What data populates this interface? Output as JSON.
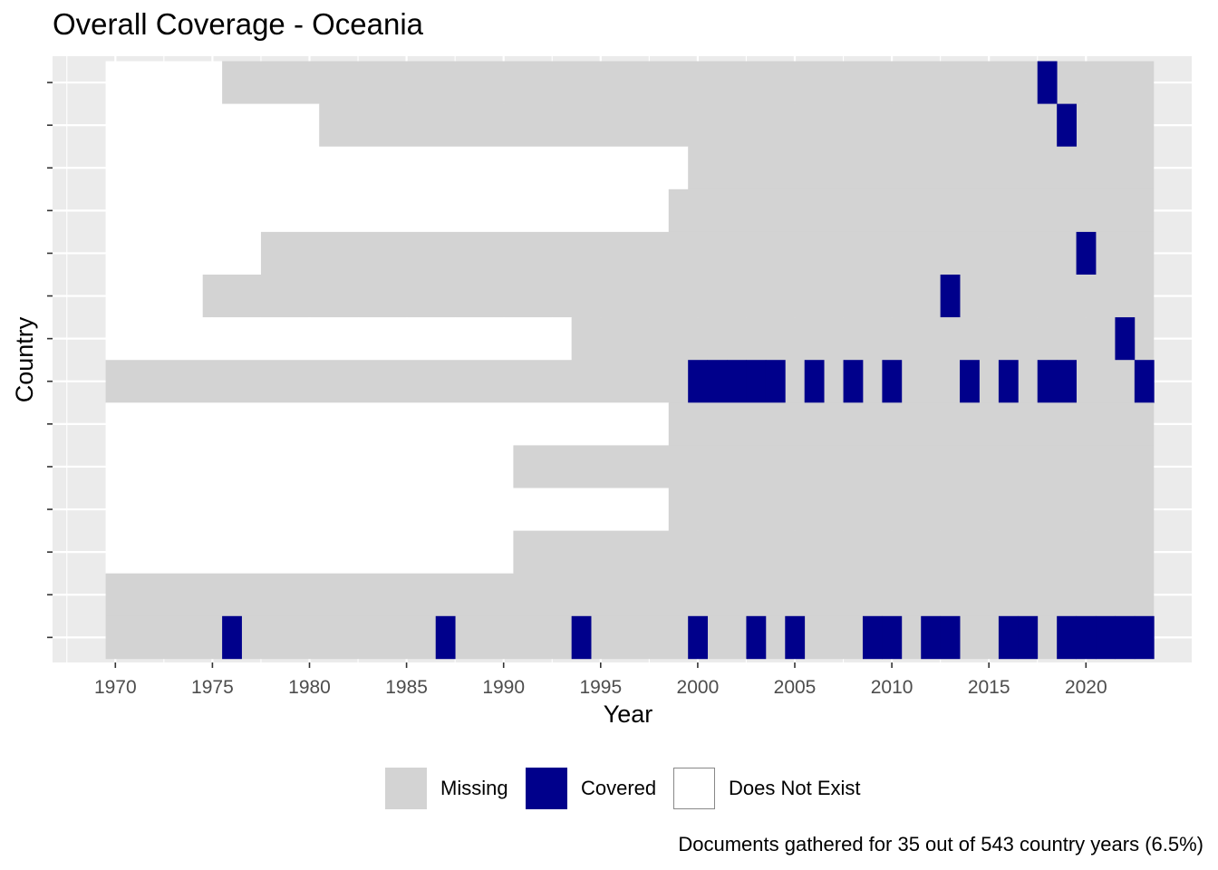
{
  "chart_data": {
    "type": "heatmap",
    "title": "Overall Coverage - Oceania",
    "xlabel": "Year",
    "ylabel": "Country",
    "x_ticks": [
      1970,
      1975,
      1980,
      1985,
      1990,
      1995,
      2000,
      2005,
      2010,
      2015,
      2020
    ],
    "x_tick_labels": [
      "1970",
      "1975",
      "1980",
      "1985",
      "1990",
      "1995",
      "2000",
      "2005",
      "2010",
      "2015",
      "2020"
    ],
    "xlim": [
      1967.5,
      2025.5
    ],
    "year_range": [
      1970,
      2023
    ],
    "grid": true,
    "legend_position": "bottom",
    "legend": [
      {
        "key": "missing",
        "label": "Missing",
        "color": "#D3D3D3"
      },
      {
        "key": "covered",
        "label": "Covered",
        "color": "#00008B"
      },
      {
        "key": "does_not_exist",
        "label": "Does Not Exist",
        "color": "#FFFFFF"
      }
    ],
    "rows_top_to_bottom": [
      {
        "exists_from": 1976,
        "covered_years": [
          2018
        ]
      },
      {
        "exists_from": 1981,
        "covered_years": [
          2019
        ]
      },
      {
        "exists_from": 2000,
        "covered_years": []
      },
      {
        "exists_from": 1999,
        "covered_years": []
      },
      {
        "exists_from": 1978,
        "covered_years": [
          2020
        ]
      },
      {
        "exists_from": 1975,
        "covered_years": [
          2013
        ]
      },
      {
        "exists_from": 1994,
        "covered_years": [
          2022
        ]
      },
      {
        "exists_from": 1970,
        "covered_years": [
          2000,
          2001,
          2002,
          2003,
          2004,
          2006,
          2008,
          2010,
          2014,
          2016,
          2018,
          2019,
          2023
        ]
      },
      {
        "exists_from": 1999,
        "covered_years": []
      },
      {
        "exists_from": 1991,
        "covered_years": []
      },
      {
        "exists_from": 1999,
        "covered_years": []
      },
      {
        "exists_from": 1991,
        "covered_years": []
      },
      {
        "exists_from": 1970,
        "covered_years": []
      },
      {
        "exists_from": 1970,
        "covered_years": [
          1976,
          1987,
          1994,
          2000,
          2003,
          2005,
          2009,
          2010,
          2012,
          2013,
          2016,
          2017,
          2019,
          2020,
          2021,
          2022,
          2023
        ]
      }
    ],
    "caption": "Documents gathered for 35 out of 543 country years (6.5%)"
  },
  "colors": {
    "panel_background": "#EBEBEB",
    "grid": "#FFFFFF",
    "axis_text": "#4D4D4D"
  }
}
